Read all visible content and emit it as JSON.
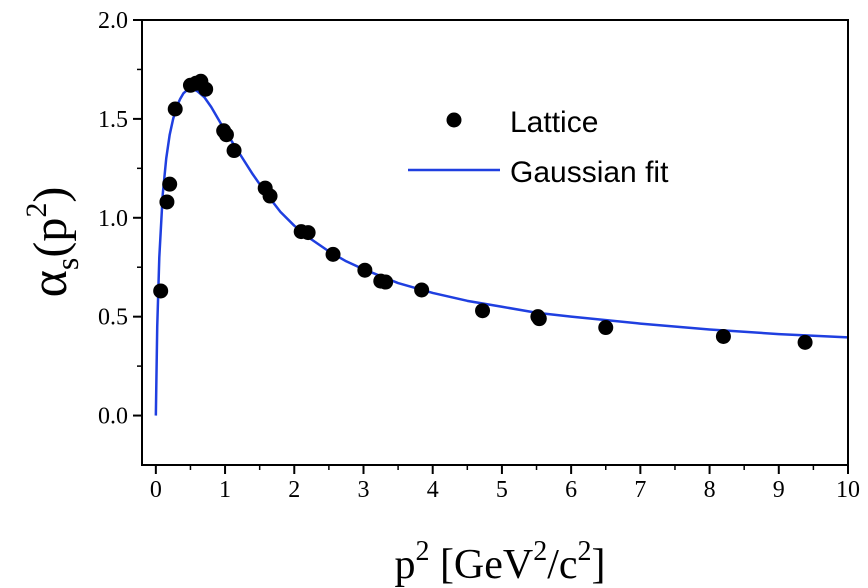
{
  "chart_data": {
    "type": "scatter",
    "title": "",
    "xlabel": {
      "base": "p",
      "sup": "2",
      "rest_open": " [GeV",
      "sup2": "2",
      "mid": "/c",
      "sup3": "2",
      "close": "]"
    },
    "ylabel": {
      "greek": "α",
      "sub": "s",
      "open": "(p",
      "sup": "2",
      "close": ")"
    },
    "xlim": [
      -0.2,
      10
    ],
    "ylim": [
      -0.25,
      2.0
    ],
    "x_ticks": [
      0,
      1,
      2,
      3,
      4,
      5,
      6,
      7,
      8,
      9,
      10
    ],
    "x_tick_labels": [
      "0",
      "1",
      "2",
      "3",
      "4",
      "5",
      "6",
      "7",
      "8",
      "9",
      "10"
    ],
    "y_ticks": [
      0.0,
      0.5,
      1.0,
      1.5,
      2.0
    ],
    "y_tick_labels": [
      "0.0",
      "0.5",
      "1.0",
      "1.5",
      "2.0"
    ],
    "grid": false,
    "legend_position": "top-right",
    "colors": {
      "lattice": "#000000",
      "fit": "#1f3fe0",
      "axis": "#000000"
    },
    "series": [
      {
        "name": "Lattice",
        "kind": "points",
        "points": [
          [
            0.07,
            0.63
          ],
          [
            0.16,
            1.08
          ],
          [
            0.2,
            1.17
          ],
          [
            0.28,
            1.55
          ],
          [
            0.5,
            1.67
          ],
          [
            0.58,
            1.68
          ],
          [
            0.65,
            1.69
          ],
          [
            0.72,
            1.65
          ],
          [
            0.98,
            1.44
          ],
          [
            1.02,
            1.42
          ],
          [
            1.13,
            1.34
          ],
          [
            1.58,
            1.15
          ],
          [
            1.65,
            1.11
          ],
          [
            2.1,
            0.93
          ],
          [
            2.2,
            0.925
          ],
          [
            2.56,
            0.815
          ],
          [
            3.02,
            0.735
          ],
          [
            3.25,
            0.68
          ],
          [
            3.32,
            0.675
          ],
          [
            3.84,
            0.635
          ],
          [
            4.72,
            0.53
          ],
          [
            5.52,
            0.5
          ],
          [
            5.54,
            0.49
          ],
          [
            6.5,
            0.445
          ],
          [
            8.2,
            0.4
          ],
          [
            9.38,
            0.37
          ]
        ]
      },
      {
        "name": "Gaussian fit",
        "kind": "line",
        "points": [
          [
            0.0,
            0.0
          ],
          [
            0.02,
            0.45
          ],
          [
            0.05,
            0.8
          ],
          [
            0.1,
            1.12
          ],
          [
            0.15,
            1.3
          ],
          [
            0.2,
            1.42
          ],
          [
            0.25,
            1.5
          ],
          [
            0.3,
            1.56
          ],
          [
            0.35,
            1.6
          ],
          [
            0.4,
            1.63
          ],
          [
            0.45,
            1.645
          ],
          [
            0.5,
            1.65
          ],
          [
            0.55,
            1.648
          ],
          [
            0.6,
            1.64
          ],
          [
            0.7,
            1.61
          ],
          [
            0.8,
            1.56
          ],
          [
            0.9,
            1.5
          ],
          [
            1.0,
            1.44
          ],
          [
            1.2,
            1.33
          ],
          [
            1.4,
            1.22
          ],
          [
            1.6,
            1.12
          ],
          [
            1.8,
            1.03
          ],
          [
            2.0,
            0.96
          ],
          [
            2.25,
            0.89
          ],
          [
            2.5,
            0.83
          ],
          [
            2.75,
            0.78
          ],
          [
            3.0,
            0.74
          ],
          [
            3.5,
            0.67
          ],
          [
            4.0,
            0.62
          ],
          [
            4.5,
            0.58
          ],
          [
            5.0,
            0.55
          ],
          [
            5.5,
            0.52
          ],
          [
            6.0,
            0.5
          ],
          [
            7.0,
            0.465
          ],
          [
            8.0,
            0.435
          ],
          [
            9.0,
            0.412
          ],
          [
            10.0,
            0.395
          ]
        ]
      }
    ]
  }
}
